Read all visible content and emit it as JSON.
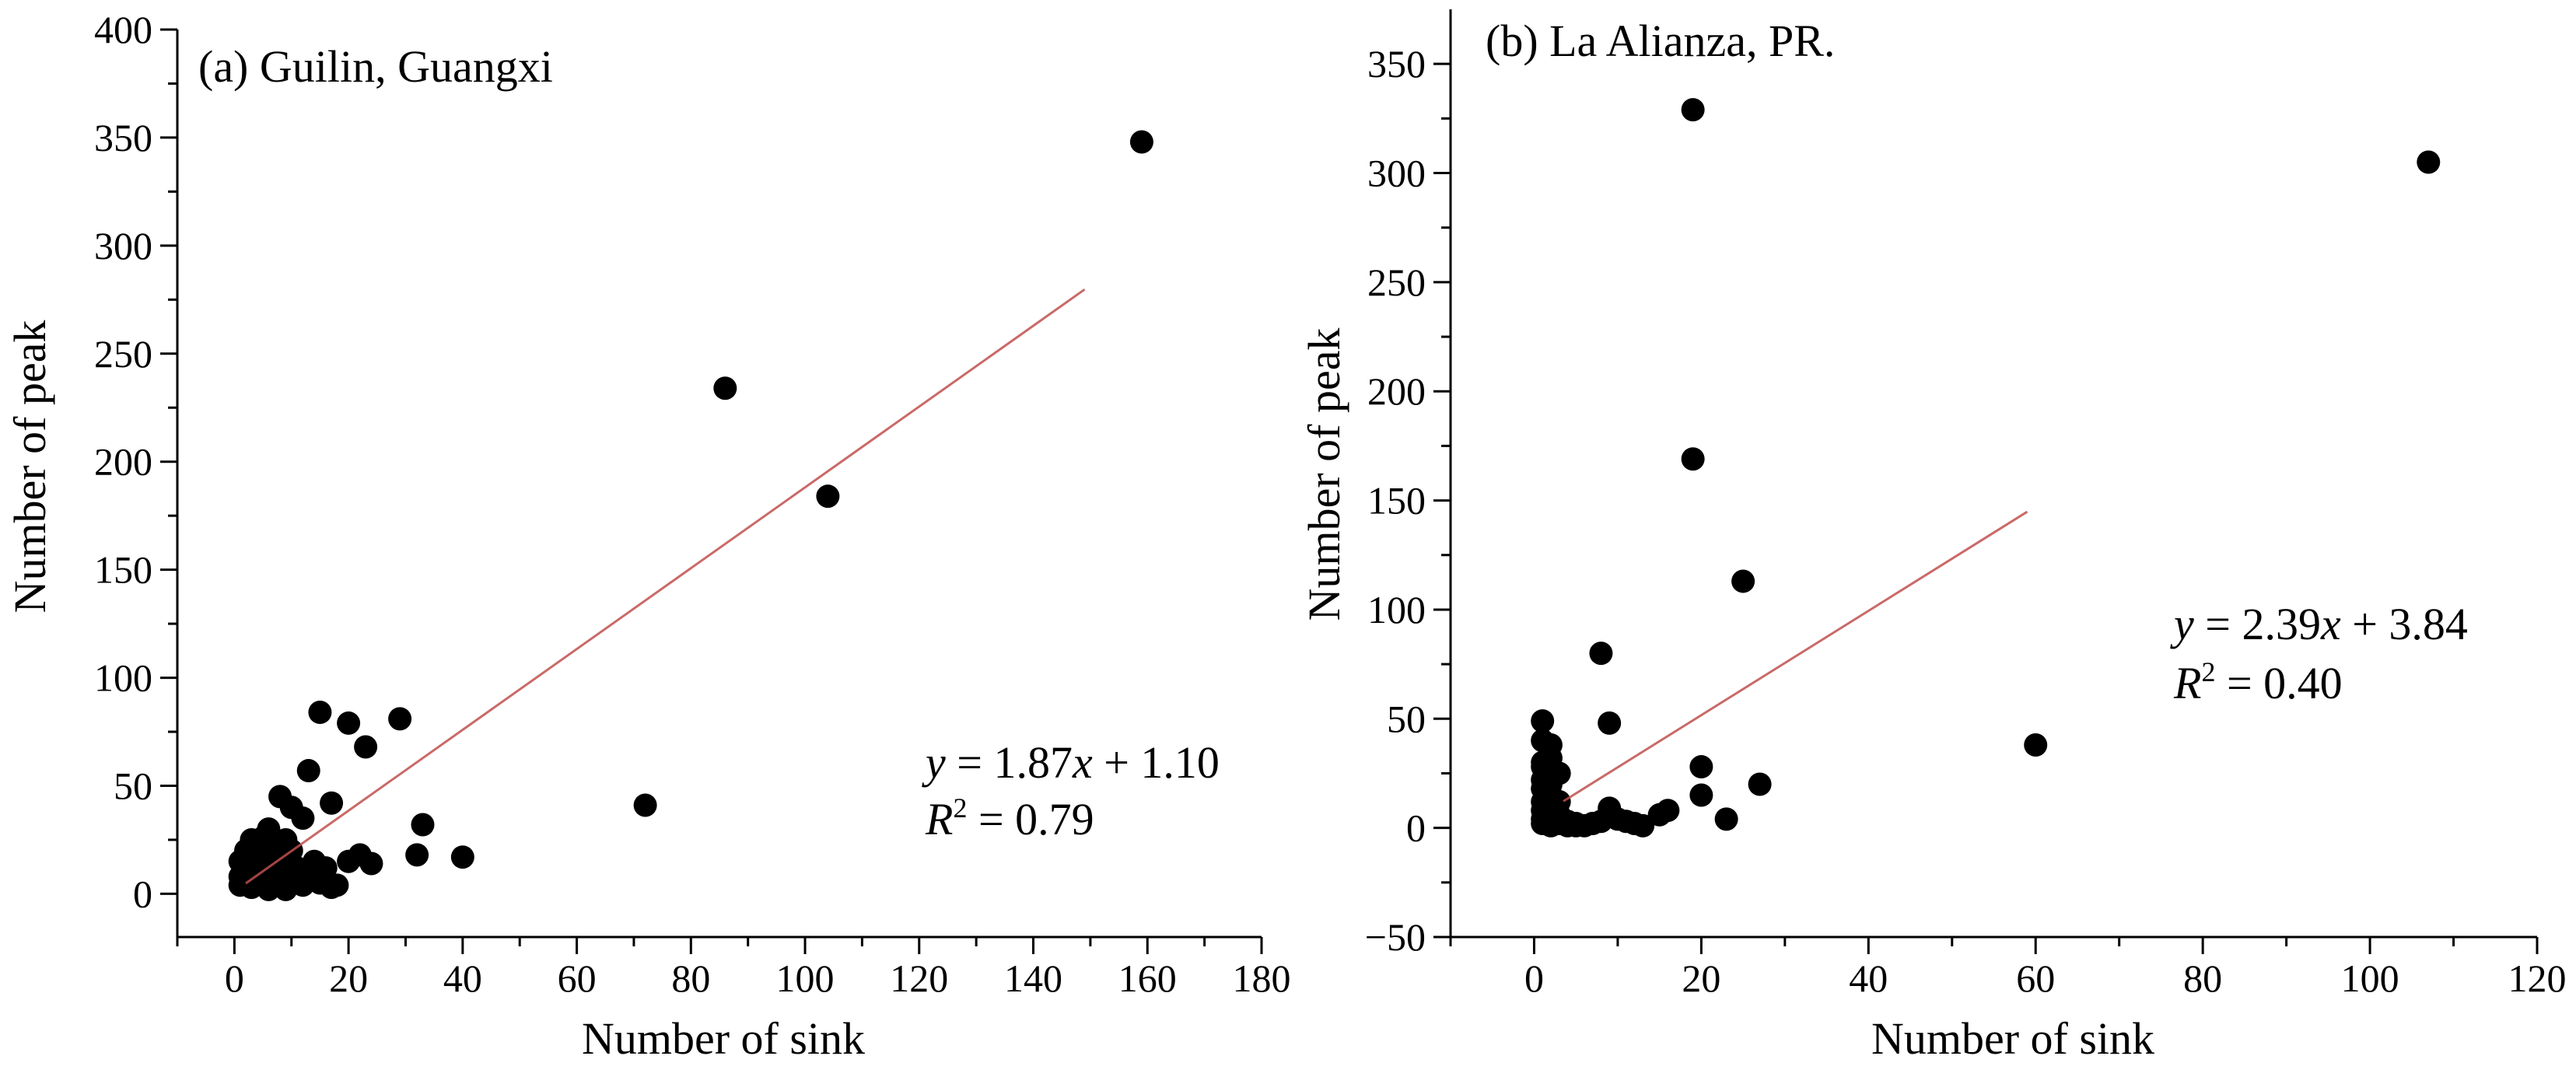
{
  "chart_data": [
    {
      "type": "scatter",
      "title": "(a) Guilin, Guangxi",
      "xlabel": "Number of sink",
      "ylabel": "Number of peak",
      "xlim": [
        -10,
        180
      ],
      "ylim": [
        -20,
        400
      ],
      "xticks": [
        0,
        20,
        40,
        60,
        80,
        100,
        120,
        140,
        160,
        180
      ],
      "yticks": [
        0,
        50,
        100,
        150,
        200,
        250,
        300,
        350,
        400
      ],
      "fit": {
        "slope": 1.87,
        "intercept": 1.1,
        "x_range": [
          2,
          149
        ]
      },
      "equation": {
        "y_label": "y",
        "rhs_before_x": " = 1.87",
        "x_label": "x",
        "rhs_after_x": " + 1.10",
        "r_label": "R",
        "r_sup": "2",
        "r_value": " = 0.79"
      },
      "points": [
        [
          159,
          348
        ],
        [
          86,
          234
        ],
        [
          104,
          184
        ],
        [
          72,
          41
        ],
        [
          40,
          17
        ],
        [
          33,
          32
        ],
        [
          32,
          18
        ],
        [
          29,
          81
        ],
        [
          23,
          68
        ],
        [
          20,
          79
        ],
        [
          15,
          84
        ],
        [
          13,
          57
        ],
        [
          17,
          42
        ],
        [
          8,
          45
        ],
        [
          10,
          40
        ],
        [
          12,
          35
        ],
        [
          6,
          30
        ],
        [
          5,
          26
        ],
        [
          4,
          22
        ],
        [
          3,
          18
        ],
        [
          2,
          20
        ],
        [
          1,
          15
        ],
        [
          1,
          8
        ],
        [
          1,
          4
        ],
        [
          2,
          5
        ],
        [
          2,
          10
        ],
        [
          3,
          3
        ],
        [
          3,
          12
        ],
        [
          4,
          8
        ],
        [
          4,
          15
        ],
        [
          5,
          5
        ],
        [
          5,
          18
        ],
        [
          6,
          2
        ],
        [
          6,
          10
        ],
        [
          7,
          15
        ],
        [
          7,
          22
        ],
        [
          8,
          5
        ],
        [
          8,
          18
        ],
        [
          9,
          10
        ],
        [
          9,
          2
        ],
        [
          10,
          20
        ],
        [
          10,
          6
        ],
        [
          11,
          12
        ],
        [
          12,
          4
        ],
        [
          13,
          8
        ],
        [
          14,
          15
        ],
        [
          15,
          5
        ],
        [
          16,
          12
        ],
        [
          17,
          3
        ],
        [
          18,
          4
        ],
        [
          20,
          15
        ],
        [
          22,
          18
        ],
        [
          24,
          14
        ],
        [
          3,
          25
        ],
        [
          5,
          12
        ],
        [
          7,
          8
        ],
        [
          9,
          25
        ],
        [
          11,
          6
        ]
      ]
    },
    {
      "type": "scatter",
      "title": "(b) La Alianza, PR.",
      "xlabel": "Number of sink",
      "ylabel": "Number of peak",
      "xlim": [
        -10,
        120
      ],
      "ylim": [
        -50,
        375
      ],
      "xticks": [
        0,
        20,
        40,
        60,
        80,
        100,
        120
      ],
      "yticks": [
        -50,
        0,
        50,
        100,
        150,
        200,
        250,
        300,
        350
      ],
      "fit": {
        "slope": 2.39,
        "intercept": 3.84,
        "x_range": [
          3.5,
          59
        ]
      },
      "equation": {
        "y_label": "y",
        "rhs_before_x": " = 2.39",
        "x_label": "x",
        "rhs_after_x": " + 3.84",
        "r_label": "R",
        "r_sup": "2",
        "r_value": " = 0.40"
      },
      "points": [
        [
          19,
          329
        ],
        [
          107,
          305
        ],
        [
          19,
          169
        ],
        [
          25,
          113
        ],
        [
          8,
          80
        ],
        [
          9,
          48
        ],
        [
          60,
          38
        ],
        [
          20,
          28
        ],
        [
          27,
          20
        ],
        [
          20,
          15
        ],
        [
          16,
          8
        ],
        [
          15,
          6
        ],
        [
          23,
          4
        ],
        [
          12,
          2
        ],
        [
          13,
          1
        ],
        [
          9,
          9
        ],
        [
          10,
          4
        ],
        [
          11,
          3
        ],
        [
          8,
          3
        ],
        [
          7,
          2
        ],
        [
          6,
          1
        ],
        [
          5,
          2
        ],
        [
          4,
          3
        ],
        [
          1,
          49
        ],
        [
          1,
          40
        ],
        [
          2,
          38
        ],
        [
          2,
          32
        ],
        [
          1,
          28
        ],
        [
          2,
          25
        ],
        [
          3,
          25
        ],
        [
          1,
          22
        ],
        [
          1,
          18
        ],
        [
          2,
          15
        ],
        [
          1,
          12
        ],
        [
          2,
          10
        ],
        [
          1,
          8
        ],
        [
          3,
          6
        ],
        [
          2,
          5
        ],
        [
          1,
          4
        ],
        [
          1,
          2
        ],
        [
          2,
          1
        ],
        [
          3,
          2
        ],
        [
          4,
          1
        ],
        [
          5,
          1
        ],
        [
          3,
          12
        ],
        [
          2,
          20
        ],
        [
          1,
          30
        ],
        [
          2,
          8
        ],
        [
          3,
          4
        ]
      ]
    }
  ]
}
